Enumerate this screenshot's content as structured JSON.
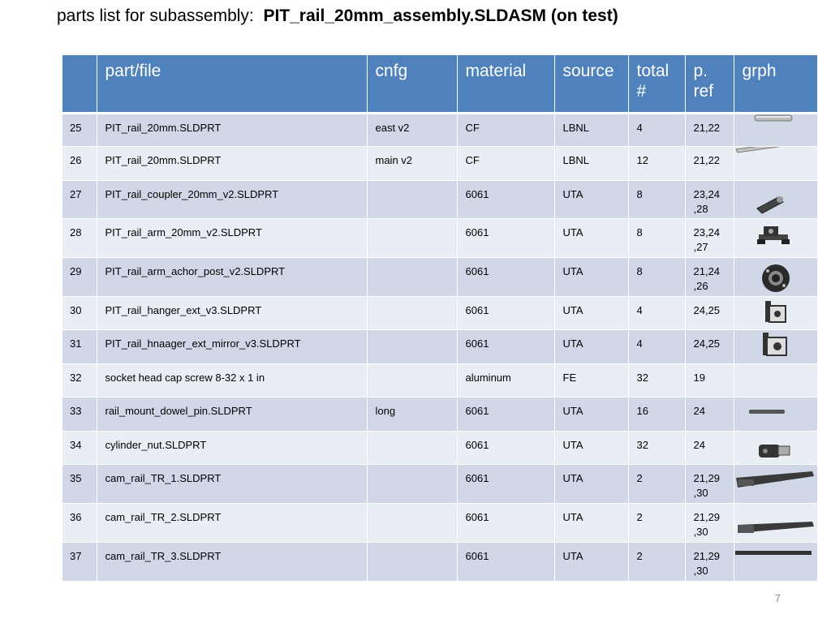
{
  "title": {
    "prefix": "parts list for subassembly:",
    "assembly": "PIT_rail_20mm_assembly.SLDASM (on test)"
  },
  "table": {
    "headers": [
      "",
      "part/file",
      "cnfg",
      "material",
      "source",
      "total #",
      "p. ref",
      "grph"
    ],
    "rows": [
      {
        "num": "25",
        "file": "PIT_rail_20mm.SLDPRT",
        "cnfg": "east v2",
        "material": "CF",
        "source": "LBNL",
        "total": "4",
        "pref": "21,22",
        "icon": "short-rod-icon"
      },
      {
        "num": "26",
        "file": "PIT_rail_20mm.SLDPRT",
        "cnfg": "main v2",
        "material": "CF",
        "source": "LBNL",
        "total": "12",
        "pref": "21,22",
        "icon": "long-rod-icon"
      },
      {
        "num": "27",
        "file": "PIT_rail_coupler_20mm_v2.SLDPRT",
        "cnfg": "",
        "material": "6061",
        "source": "UTA",
        "total": "8",
        "pref": "23,24\n,28",
        "icon": "coupler-icon"
      },
      {
        "num": "28",
        "file": "PIT_rail_arm_20mm_v2.SLDPRT",
        "cnfg": "",
        "material": "6061",
        "source": "UTA",
        "total": "8",
        "pref": "23,24\n,27",
        "icon": "rail-arm-icon"
      },
      {
        "num": "29",
        "file": "PIT_rail_arm_achor_post_v2.SLDPRT",
        "cnfg": "",
        "material": "6061",
        "source": "UTA",
        "total": "8",
        "pref": "21,24\n,26",
        "icon": "anchor-post-icon"
      },
      {
        "num": "30",
        "file": "PIT_rail_hanger_ext_v3.SLDPRT",
        "cnfg": "",
        "material": "6061",
        "source": "UTA",
        "total": "4",
        "pref": "24,25",
        "icon": "hanger-bracket-icon"
      },
      {
        "num": "31",
        "file": "PIT_rail_hnaager_ext_mirror_v3.SLDPRT",
        "cnfg": "",
        "material": "6061",
        "source": "UTA",
        "total": "4",
        "pref": "24,25",
        "icon": "hanger-mirror-bracket-icon"
      },
      {
        "num": "32",
        "file": "socket head cap screw 8-32 x 1 in",
        "cnfg": "",
        "material": "aluminum",
        "source": "FE",
        "total": "32",
        "pref": "19",
        "icon": ""
      },
      {
        "num": "33",
        "file": "rail_mount_dowel_pin.SLDPRT",
        "cnfg": "long",
        "material": "6061",
        "source": "UTA",
        "total": "16",
        "pref": "24",
        "icon": "dowel-pin-icon"
      },
      {
        "num": "34",
        "file": "cylinder_nut.SLDPRT",
        "cnfg": "",
        "material": "6061",
        "source": "UTA",
        "total": "32",
        "pref": "24",
        "icon": "cylinder-nut-icon"
      },
      {
        "num": "35",
        "file": "cam_rail_TR_1.SLDPRT",
        "cnfg": "",
        "material": "6061",
        "source": "UTA",
        "total": "2",
        "pref": "21,29\n,30",
        "icon": "cam-rail-1-icon"
      },
      {
        "num": "36",
        "file": "cam_rail_TR_2.SLDPRT",
        "cnfg": "",
        "material": "6061",
        "source": "UTA",
        "total": "2",
        "pref": "21,29\n,30",
        "icon": "cam-rail-2-icon"
      },
      {
        "num": "37",
        "file": "cam_rail_TR_3.SLDPRT",
        "cnfg": "",
        "material": "6061",
        "source": "UTA",
        "total": "2",
        "pref": "21,29\n,30",
        "icon": "cam-rail-3-icon"
      }
    ]
  },
  "slide_number": "7",
  "colors": {
    "header_bg": "#4f81bd",
    "row_odd": "#d0d8e8",
    "row_even": "#e9edf4"
  }
}
